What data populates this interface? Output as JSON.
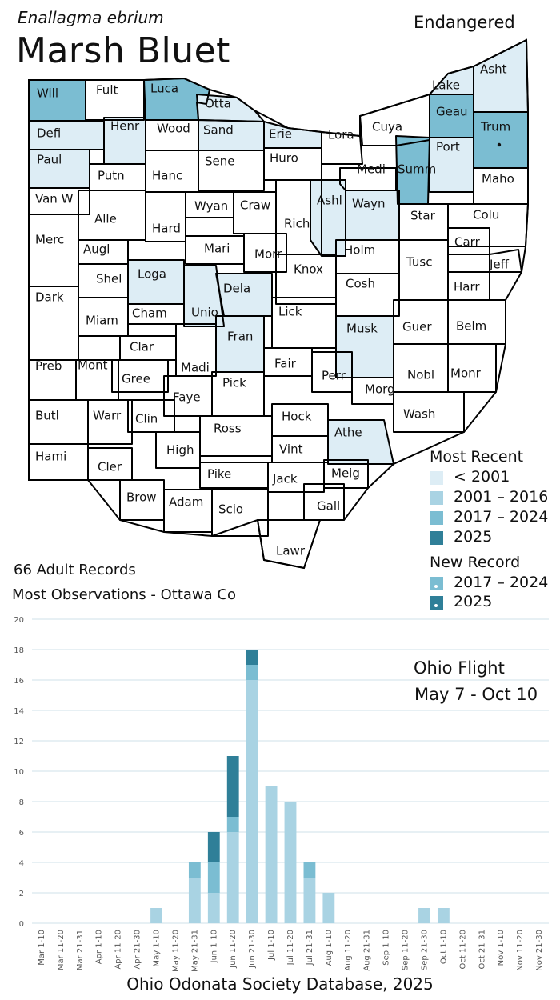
{
  "header": {
    "scientific_name": "Enallagma ebrium",
    "common_name": "Marsh Bluet",
    "status": "Endangered"
  },
  "colors": {
    "lt2001": "#ddedf5",
    "y2001_2016": "#a9d3e3",
    "y2017_2024": "#7bbdd2",
    "y2025": "#2f7f98",
    "none": "#ffffff",
    "gridline": "#cfe0e8"
  },
  "legend": {
    "most_recent_title": "Most Recent",
    "most_recent_items": [
      {
        "label": "< 2001",
        "color_key": "lt2001"
      },
      {
        "label": "2001 – 2016",
        "color_key": "y2001_2016"
      },
      {
        "label": "2017 – 2024",
        "color_key": "y2017_2024"
      },
      {
        "label": "2025",
        "color_key": "y2025"
      }
    ],
    "new_record_title": "New Record",
    "new_record_items": [
      {
        "label": "2017 – 2024",
        "color_key": "y2017_2024"
      },
      {
        "label": "2025",
        "color_key": "y2025"
      }
    ]
  },
  "map": {
    "counties": [
      {
        "label": "Will",
        "shade": "y2017_2024"
      },
      {
        "label": "Fult",
        "shade": "none"
      },
      {
        "label": "Luca",
        "shade": "y2017_2024"
      },
      {
        "label": "Otta",
        "shade": "lt2001"
      },
      {
        "label": "Defi",
        "shade": "lt2001"
      },
      {
        "label": "Henr",
        "shade": "lt2001"
      },
      {
        "label": "Wood",
        "shade": "none"
      },
      {
        "label": "Sand",
        "shade": "lt2001"
      },
      {
        "label": "Erie",
        "shade": "lt2001"
      },
      {
        "label": "Lora",
        "shade": "none"
      },
      {
        "label": "Cuya",
        "shade": "none"
      },
      {
        "label": "Lake",
        "shade": "lt2001"
      },
      {
        "label": "Asht",
        "shade": "lt2001"
      },
      {
        "label": "Geau",
        "shade": "y2017_2024"
      },
      {
        "label": "Trum",
        "shade": "y2017_2024"
      },
      {
        "label": "Paul",
        "shade": "lt2001"
      },
      {
        "label": "Putn",
        "shade": "none"
      },
      {
        "label": "Hanc",
        "shade": "none"
      },
      {
        "label": "Sene",
        "shade": "none"
      },
      {
        "label": "Huro",
        "shade": "none"
      },
      {
        "label": "Medi",
        "shade": "none"
      },
      {
        "label": "Summ",
        "shade": "y2017_2024"
      },
      {
        "label": "Port",
        "shade": "lt2001"
      },
      {
        "label": "Maho",
        "shade": "none"
      },
      {
        "label": "Van W",
        "shade": "none"
      },
      {
        "label": "Alle",
        "shade": "none"
      },
      {
        "label": "Hard",
        "shade": "none"
      },
      {
        "label": "Wyan",
        "shade": "none"
      },
      {
        "label": "Craw",
        "shade": "none"
      },
      {
        "label": "Rich",
        "shade": "none"
      },
      {
        "label": "Ashl",
        "shade": "lt2001"
      },
      {
        "label": "Wayn",
        "shade": "lt2001"
      },
      {
        "label": "Star",
        "shade": "none"
      },
      {
        "label": "Colu",
        "shade": "none"
      },
      {
        "label": "Merc",
        "shade": "none"
      },
      {
        "label": "Augl",
        "shade": "none"
      },
      {
        "label": "Mari",
        "shade": "none"
      },
      {
        "label": "Morr",
        "shade": "none"
      },
      {
        "label": "Holm",
        "shade": "none"
      },
      {
        "label": "Carr",
        "shade": "none"
      },
      {
        "label": "Tusc",
        "shade": "none"
      },
      {
        "label": "Jeff",
        "shade": "none"
      },
      {
        "label": "Shel",
        "shade": "none"
      },
      {
        "label": "Loga",
        "shade": "lt2001"
      },
      {
        "label": "Knox",
        "shade": "none"
      },
      {
        "label": "Cosh",
        "shade": "none"
      },
      {
        "label": "Harr",
        "shade": "none"
      },
      {
        "label": "Dark",
        "shade": "none"
      },
      {
        "label": "Miam",
        "shade": "none"
      },
      {
        "label": "Cham",
        "shade": "none"
      },
      {
        "label": "Unio",
        "shade": "lt2001"
      },
      {
        "label": "Dela",
        "shade": "lt2001"
      },
      {
        "label": "Lick",
        "shade": "none"
      },
      {
        "label": "Musk",
        "shade": "lt2001"
      },
      {
        "label": "Guer",
        "shade": "none"
      },
      {
        "label": "Belm",
        "shade": "none"
      },
      {
        "label": "Clar",
        "shade": "none"
      },
      {
        "label": "Fran",
        "shade": "lt2001"
      },
      {
        "label": "Madi",
        "shade": "none"
      },
      {
        "label": "Fair",
        "shade": "none"
      },
      {
        "label": "Perr",
        "shade": "none"
      },
      {
        "label": "Nobl",
        "shade": "none"
      },
      {
        "label": "Monr",
        "shade": "none"
      },
      {
        "label": "Preb",
        "shade": "none"
      },
      {
        "label": "Mont",
        "shade": "none"
      },
      {
        "label": "Gree",
        "shade": "none"
      },
      {
        "label": "Faye",
        "shade": "none"
      },
      {
        "label": "Pick",
        "shade": "none"
      },
      {
        "label": "Morg",
        "shade": "none"
      },
      {
        "label": "Wash",
        "shade": "none"
      },
      {
        "label": "Butl",
        "shade": "none"
      },
      {
        "label": "Warr",
        "shade": "none"
      },
      {
        "label": "Clin",
        "shade": "none"
      },
      {
        "label": "Ross",
        "shade": "none"
      },
      {
        "label": "Hock",
        "shade": "none"
      },
      {
        "label": "Athe",
        "shade": "lt2001"
      },
      {
        "label": "Vint",
        "shade": "none"
      },
      {
        "label": "Hami",
        "shade": "none"
      },
      {
        "label": "Cler",
        "shade": "none"
      },
      {
        "label": "High",
        "shade": "none"
      },
      {
        "label": "Pike",
        "shade": "none"
      },
      {
        "label": "Jack",
        "shade": "none"
      },
      {
        "label": "Meig",
        "shade": "none"
      },
      {
        "label": "Brow",
        "shade": "none"
      },
      {
        "label": "Adam",
        "shade": "none"
      },
      {
        "label": "Scio",
        "shade": "none"
      },
      {
        "label": "Gall",
        "shade": "none"
      },
      {
        "label": "Lawr",
        "shade": "none"
      }
    ]
  },
  "summary": {
    "records": "66 Adult Records",
    "most_observations": "Most Observations - Ottawa Co"
  },
  "flight": {
    "title": "Ohio Flight",
    "range": "May 7 - Oct 10"
  },
  "chart_data": {
    "type": "bar",
    "stacked": true,
    "categories": [
      "Mar 1-10",
      "Mar 11-20",
      "Mar 21-31",
      "Apr 1-10",
      "Apr 11-20",
      "Apr 21-30",
      "May 1-10",
      "May 11-20",
      "May 21-31",
      "Jun 1-10",
      "Jun 11-20",
      "Jun 21-30",
      "Jul 1-10",
      "Jul 11-20",
      "Jul 21-31",
      "Aug 1-10",
      "Aug 11-20",
      "Aug 21-31",
      "Sep 1-10",
      "Sep 11-20",
      "Sep 21-30",
      "Oct 1-10",
      "Oct 11-20",
      "Oct 21-31",
      "Nov 1-10",
      "Nov 11-20",
      "Nov 21-30"
    ],
    "series": [
      {
        "color_key": "y2001_2016",
        "values": [
          0,
          0,
          0,
          0,
          0,
          0,
          1,
          0,
          3,
          2,
          6,
          16,
          9,
          8,
          3,
          2,
          0,
          0,
          0,
          0,
          1,
          1,
          0,
          0,
          0,
          0,
          0
        ]
      },
      {
        "color_key": "y2017_2024",
        "values": [
          0,
          0,
          0,
          0,
          0,
          0,
          0,
          0,
          1,
          2,
          1,
          1,
          0,
          0,
          1,
          0,
          0,
          0,
          0,
          0,
          0,
          0,
          0,
          0,
          0,
          0,
          0
        ]
      },
      {
        "color_key": "y2025",
        "values": [
          0,
          0,
          0,
          0,
          0,
          0,
          0,
          0,
          0,
          2,
          4,
          1,
          0,
          0,
          0,
          0,
          0,
          0,
          0,
          0,
          0,
          0,
          0,
          0,
          0,
          0,
          0
        ]
      }
    ],
    "ylim": [
      0,
      20
    ],
    "yticks": [
      0,
      2,
      4,
      6,
      8,
      10,
      12,
      14,
      16,
      18,
      20
    ],
    "grid": true
  },
  "footer": "Ohio Odonata Society Database, 2025"
}
